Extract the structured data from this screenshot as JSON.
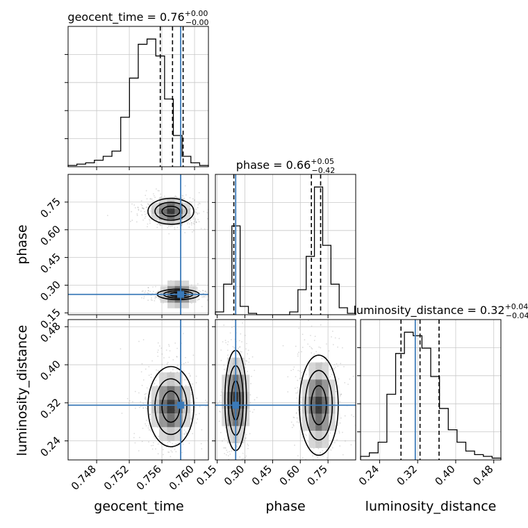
{
  "colors": {
    "truth": "#3b7ab8",
    "hist": "#000000",
    "grid": "#c8c8c8",
    "frame": "#000000"
  },
  "chart_data": {
    "type": "corner",
    "params": [
      {
        "name": "geocent_time",
        "axis_label": "geocent_time",
        "title_prefix": "geocent_time = 0.76",
        "title_plus": "+0.00",
        "title_minus": "−0.00",
        "range": [
          0.7445,
          0.7617
        ],
        "ticks": [
          0.748,
          0.752,
          0.756,
          0.76
        ],
        "tick_labels": [
          "0.748",
          "0.752",
          "0.756",
          "0.760"
        ],
        "truth": 0.7583,
        "quantiles": [
          0.7558,
          0.7573,
          0.7586
        ],
        "hist": [
          0.01,
          0.02,
          0.03,
          0.05,
          0.08,
          0.12,
          0.38,
          0.68,
          0.94,
          0.98,
          0.85,
          0.52,
          0.24,
          0.08,
          0.03,
          0.01
        ]
      },
      {
        "name": "phase",
        "axis_label": "phase",
        "title_prefix": "phase = 0.66",
        "title_plus": "+0.05",
        "title_minus": "−0.42",
        "range": [
          0.14,
          0.9
        ],
        "ticks": [
          0.15,
          0.3,
          0.45,
          0.6,
          0.75
        ],
        "tick_labels": [
          "0.15",
          "0.30",
          "0.45",
          "0.60",
          "0.75"
        ],
        "truth": 0.25,
        "quantiles": [
          0.24,
          0.66,
          0.71
        ],
        "hist": [
          0.02,
          0.22,
          0.64,
          0.06,
          0.01,
          0.0,
          0.0,
          0.0,
          0.0,
          0.02,
          0.18,
          0.42,
          0.92,
          0.5,
          0.22,
          0.05,
          0.01
        ]
      },
      {
        "name": "luminosity_distance",
        "axis_label": "luminosity_distance",
        "title_prefix": "luminosity_distance = 0.32",
        "title_plus": "+0.04",
        "title_minus": "−0.04",
        "range": [
          0.2,
          0.495
        ],
        "ticks": [
          0.24,
          0.32,
          0.4,
          0.48
        ],
        "tick_labels": [
          "0.24",
          "0.32",
          "0.40",
          "0.48"
        ],
        "truth": 0.315,
        "quantiles": [
          0.285,
          0.325,
          0.365
        ],
        "hist": [
          0.02,
          0.04,
          0.1,
          0.37,
          0.6,
          0.72,
          0.7,
          0.63,
          0.47,
          0.29,
          0.17,
          0.1,
          0.05,
          0.03,
          0.02,
          0.01
        ]
      }
    ],
    "panels_2d": [
      {
        "x": "geocent_time",
        "y": "phase",
        "modes": [
          {
            "cx": 0.7571,
            "cy": 0.7,
            "sx": 0.0012,
            "sy": 0.03
          },
          {
            "cx": 0.758,
            "cy": 0.25,
            "sx": 0.0011,
            "sy": 0.012
          }
        ]
      },
      {
        "x": "geocent_time",
        "y": "luminosity_distance",
        "modes": [
          {
            "cx": 0.7571,
            "cy": 0.312,
            "sx": 0.0012,
            "sy": 0.036
          }
        ]
      },
      {
        "x": "phase",
        "y": "luminosity_distance",
        "modes": [
          {
            "cx": 0.25,
            "cy": 0.325,
            "sx": 0.025,
            "sy": 0.045
          },
          {
            "cx": 0.7,
            "cy": 0.315,
            "sx": 0.045,
            "sy": 0.045
          }
        ]
      }
    ],
    "grid": true
  }
}
